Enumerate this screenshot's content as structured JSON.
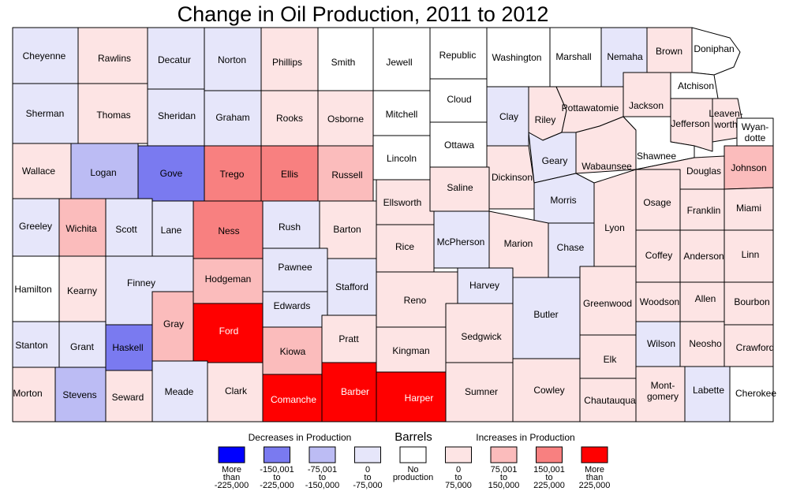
{
  "title": "Change in Oil Production, 2011 to 2012",
  "colors": {
    "nodata": "#ffffff",
    "dec_0_75": "#e6e6fa",
    "dec_75_150": "#bcbcf4",
    "dec_150_225": "#7a7af0",
    "dec_225_plus": "#0000ff",
    "inc_0_75": "#fde4e4",
    "inc_75_150": "#fbbcbc",
    "inc_150_225": "#f88080",
    "inc_225_plus": "#ff0000"
  },
  "legend": {
    "decreases_label": "Decreases in Production",
    "barrels_label": "Barrels",
    "increases_label": "Increases in Production",
    "items": [
      {
        "cls": "dec_225_plus",
        "lines": [
          "More",
          "than",
          "-225,000"
        ]
      },
      {
        "cls": "dec_150_225",
        "lines": [
          "-150,001",
          "to",
          "-225,000"
        ]
      },
      {
        "cls": "dec_75_150",
        "lines": [
          "-75,001",
          "to",
          "-150,000"
        ]
      },
      {
        "cls": "dec_0_75",
        "lines": [
          "0",
          "to",
          "-75,000"
        ]
      },
      {
        "cls": "nodata",
        "lines": [
          "No",
          "production"
        ]
      },
      {
        "cls": "inc_0_75",
        "lines": [
          "0",
          "to",
          "75,000"
        ]
      },
      {
        "cls": "inc_75_150",
        "lines": [
          "75,001",
          "to",
          "150,000"
        ]
      },
      {
        "cls": "inc_150_225",
        "lines": [
          "150,001",
          "to",
          "225,000"
        ]
      },
      {
        "cls": "inc_225_plus",
        "lines": [
          "More",
          "than",
          "225,000"
        ]
      }
    ]
  },
  "counties": [
    {
      "name": "Cheyenne",
      "cls": "dec_0_75"
    },
    {
      "name": "Rawlins",
      "cls": "inc_0_75"
    },
    {
      "name": "Decatur",
      "cls": "dec_0_75"
    },
    {
      "name": "Norton",
      "cls": "dec_0_75"
    },
    {
      "name": "Phillips",
      "cls": "inc_0_75"
    },
    {
      "name": "Smith",
      "cls": "nodata"
    },
    {
      "name": "Jewell",
      "cls": "nodata"
    },
    {
      "name": "Republic",
      "cls": "nodata"
    },
    {
      "name": "Washington",
      "cls": "nodata"
    },
    {
      "name": "Marshall",
      "cls": "nodata"
    },
    {
      "name": "Nemaha",
      "cls": "dec_0_75"
    },
    {
      "name": "Brown",
      "cls": "inc_0_75"
    },
    {
      "name": "Doniphan",
      "cls": "nodata"
    },
    {
      "name": "Sherman",
      "cls": "dec_0_75"
    },
    {
      "name": "Thomas",
      "cls": "inc_0_75"
    },
    {
      "name": "Sheridan",
      "cls": "dec_0_75"
    },
    {
      "name": "Graham",
      "cls": "dec_0_75"
    },
    {
      "name": "Rooks",
      "cls": "inc_0_75"
    },
    {
      "name": "Osborne",
      "cls": "inc_0_75"
    },
    {
      "name": "Mitchell",
      "cls": "nodata"
    },
    {
      "name": "Cloud",
      "cls": "nodata"
    },
    {
      "name": "Clay",
      "cls": "dec_0_75"
    },
    {
      "name": "Riley",
      "cls": "inc_0_75"
    },
    {
      "name": "Pottawatomie",
      "cls": "inc_0_75"
    },
    {
      "name": "Jackson",
      "cls": "inc_0_75"
    },
    {
      "name": "Atchison",
      "cls": "nodata"
    },
    {
      "name": "Jefferson",
      "cls": "inc_0_75"
    },
    {
      "name": "Leaven-worth",
      "cls": "inc_0_75",
      "lines": [
        "Leaven-",
        "worth"
      ]
    },
    {
      "name": "Wyan-dotte",
      "cls": "nodata",
      "lines": [
        "Wyan-",
        "dotte"
      ]
    },
    {
      "name": "Wallace",
      "cls": "inc_0_75"
    },
    {
      "name": "Logan",
      "cls": "dec_75_150"
    },
    {
      "name": "Gove",
      "cls": "dec_150_225"
    },
    {
      "name": "Trego",
      "cls": "inc_150_225"
    },
    {
      "name": "Ellis",
      "cls": "inc_150_225"
    },
    {
      "name": "Russell",
      "cls": "inc_75_150"
    },
    {
      "name": "Lincoln",
      "cls": "nodata"
    },
    {
      "name": "Ottawa",
      "cls": "nodata"
    },
    {
      "name": "Dickinson",
      "cls": "inc_0_75"
    },
    {
      "name": "Geary",
      "cls": "dec_0_75"
    },
    {
      "name": "Wabaunsee",
      "cls": "inc_0_75"
    },
    {
      "name": "Shawnee",
      "cls": "nodata"
    },
    {
      "name": "Douglas",
      "cls": "inc_0_75"
    },
    {
      "name": "Johnson",
      "cls": "inc_75_150"
    },
    {
      "name": "Greeley",
      "cls": "dec_0_75"
    },
    {
      "name": "Wichita",
      "cls": "inc_75_150"
    },
    {
      "name": "Scott",
      "cls": "dec_0_75"
    },
    {
      "name": "Lane",
      "cls": "dec_0_75"
    },
    {
      "name": "Ness",
      "cls": "inc_150_225"
    },
    {
      "name": "Rush",
      "cls": "dec_0_75"
    },
    {
      "name": "Barton",
      "cls": "inc_0_75"
    },
    {
      "name": "Ellsworth",
      "cls": "inc_0_75"
    },
    {
      "name": "Saline",
      "cls": "inc_0_75"
    },
    {
      "name": "Morris",
      "cls": "dec_0_75"
    },
    {
      "name": "Osage",
      "cls": "inc_0_75"
    },
    {
      "name": "Franklin",
      "cls": "inc_0_75"
    },
    {
      "name": "Miami",
      "cls": "inc_0_75"
    },
    {
      "name": "Hamilton",
      "cls": "nodata"
    },
    {
      "name": "Kearny",
      "cls": "inc_0_75"
    },
    {
      "name": "Finney",
      "cls": "dec_0_75"
    },
    {
      "name": "Hodgeman",
      "cls": "inc_75_150"
    },
    {
      "name": "Pawnee",
      "cls": "dec_0_75"
    },
    {
      "name": "Stafford",
      "cls": "dec_0_75"
    },
    {
      "name": "Rice",
      "cls": "inc_0_75"
    },
    {
      "name": "McPherson",
      "cls": "dec_0_75"
    },
    {
      "name": "Marion",
      "cls": "inc_0_75"
    },
    {
      "name": "Chase",
      "cls": "dec_0_75"
    },
    {
      "name": "Lyon",
      "cls": "inc_0_75"
    },
    {
      "name": "Coffey",
      "cls": "inc_0_75"
    },
    {
      "name": "Anderson",
      "cls": "inc_0_75"
    },
    {
      "name": "Linn",
      "cls": "inc_0_75"
    },
    {
      "name": "Edwards",
      "cls": "dec_0_75"
    },
    {
      "name": "Reno",
      "cls": "inc_0_75"
    },
    {
      "name": "Harvey",
      "cls": "dec_0_75"
    },
    {
      "name": "Stanton",
      "cls": "dec_0_75"
    },
    {
      "name": "Grant",
      "cls": "dec_0_75"
    },
    {
      "name": "Haskell",
      "cls": "dec_150_225"
    },
    {
      "name": "Gray",
      "cls": "inc_75_150"
    },
    {
      "name": "Ford",
      "cls": "inc_225_plus"
    },
    {
      "name": "Kiowa",
      "cls": "inc_75_150"
    },
    {
      "name": "Pratt",
      "cls": "inc_0_75"
    },
    {
      "name": "Kingman",
      "cls": "inc_0_75"
    },
    {
      "name": "Sedgwick",
      "cls": "inc_0_75"
    },
    {
      "name": "Butler",
      "cls": "dec_0_75"
    },
    {
      "name": "Greenwood",
      "cls": "inc_0_75"
    },
    {
      "name": "Woodson",
      "cls": "inc_0_75"
    },
    {
      "name": "Allen",
      "cls": "inc_0_75"
    },
    {
      "name": "Bourbon",
      "cls": "inc_0_75"
    },
    {
      "name": "Wilson",
      "cls": "dec_0_75"
    },
    {
      "name": "Neosho",
      "cls": "inc_0_75"
    },
    {
      "name": "Crawford",
      "cls": "inc_0_75"
    },
    {
      "name": "Elk",
      "cls": "inc_0_75"
    },
    {
      "name": "Morton",
      "cls": "inc_0_75"
    },
    {
      "name": "Stevens",
      "cls": "dec_75_150"
    },
    {
      "name": "Seward",
      "cls": "inc_0_75"
    },
    {
      "name": "Meade",
      "cls": "dec_0_75"
    },
    {
      "name": "Clark",
      "cls": "inc_0_75"
    },
    {
      "name": "Comanche",
      "cls": "inc_225_plus"
    },
    {
      "name": "Barber",
      "cls": "inc_225_plus"
    },
    {
      "name": "Harper",
      "cls": "inc_225_plus"
    },
    {
      "name": "Sumner",
      "cls": "inc_0_75"
    },
    {
      "name": "Cowley",
      "cls": "inc_0_75"
    },
    {
      "name": "Chautauqua",
      "cls": "inc_0_75"
    },
    {
      "name": "Mont-gomery",
      "cls": "inc_0_75",
      "lines": [
        "Mont-",
        "gomery"
      ]
    },
    {
      "name": "Labette",
      "cls": "dec_0_75"
    },
    {
      "name": "Cherokee",
      "cls": "nodata"
    }
  ]
}
